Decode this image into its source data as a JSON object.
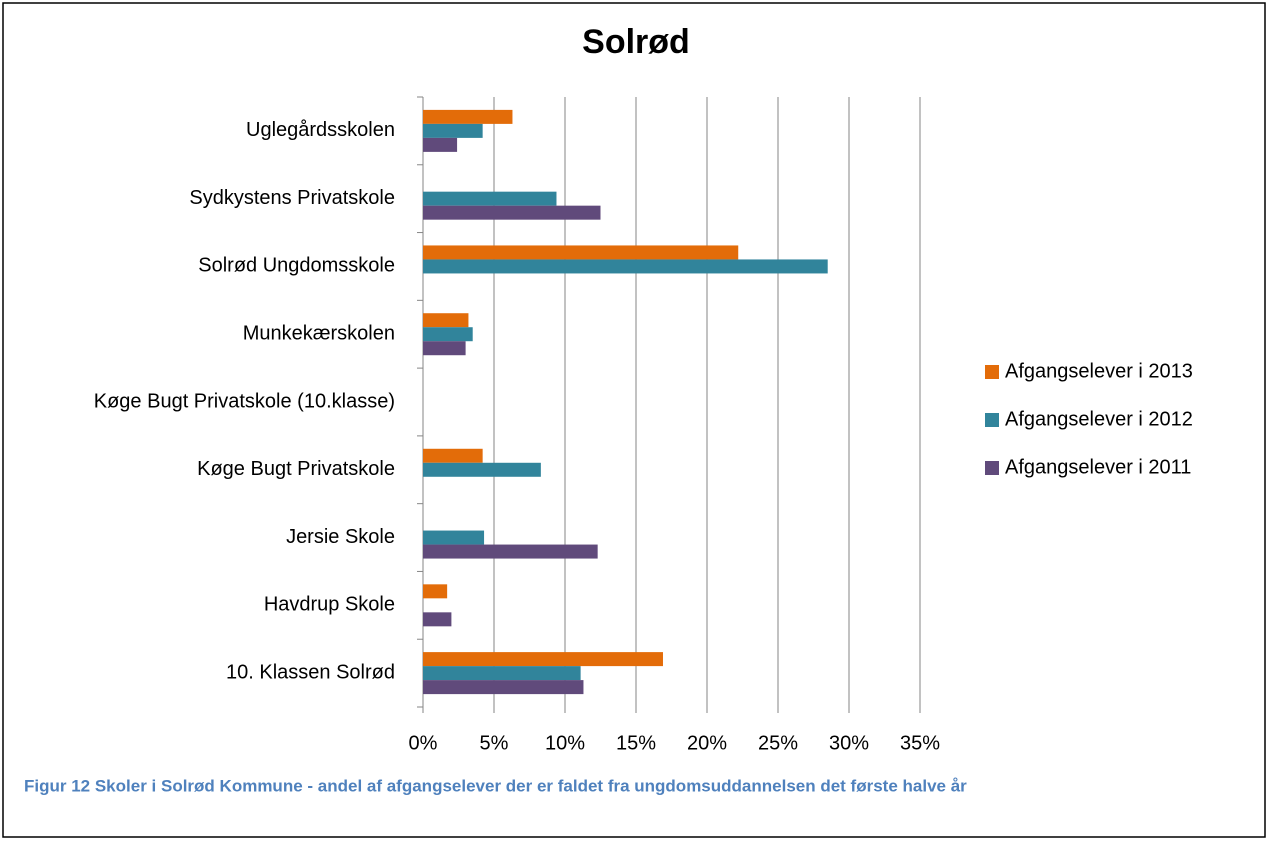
{
  "chart_data": {
    "type": "bar",
    "orientation": "horizontal",
    "title": "Solrød",
    "caption": "Figur 12 Skoler i Solrød Kommune - andel af afgangselever der er faldet fra ungdomsuddannelsen det første halve år",
    "categories": [
      "Uglegårdsskolen",
      "Sydkystens Privatskole",
      "Solrød Ungdomsskole",
      "Munkekærskolen",
      "Køge Bugt Privatskole (10.klasse)",
      "Køge Bugt Privatskole",
      "Jersie Skole",
      "Havdrup Skole",
      "10.  Klassen Solrød"
    ],
    "series": [
      {
        "name": "Afgangselever i 2013",
        "color": "#e36c09",
        "values": [
          6.3,
          null,
          22.2,
          3.2,
          null,
          4.2,
          null,
          1.7,
          16.9
        ]
      },
      {
        "name": "Afgangselever i 2012",
        "color": "#31849b",
        "values": [
          4.2,
          9.4,
          28.5,
          3.5,
          null,
          8.3,
          4.3,
          null,
          11.1
        ]
      },
      {
        "name": "Afgangselever i 2011",
        "color": "#604a7b",
        "values": [
          2.4,
          12.5,
          null,
          3.0,
          null,
          null,
          12.3,
          2.0,
          11.3
        ]
      }
    ],
    "xlim": [
      0,
      35
    ],
    "xticks": [
      {
        "value": 0,
        "label": "0%"
      },
      {
        "value": 5,
        "label": "5%"
      },
      {
        "value": 10,
        "label": "10%"
      },
      {
        "value": 15,
        "label": "15%"
      },
      {
        "value": 20,
        "label": "20%"
      },
      {
        "value": 25,
        "label": "25%"
      },
      {
        "value": 30,
        "label": "30%"
      },
      {
        "value": 35,
        "label": "35%"
      }
    ],
    "grid": true,
    "legend": "right"
  }
}
